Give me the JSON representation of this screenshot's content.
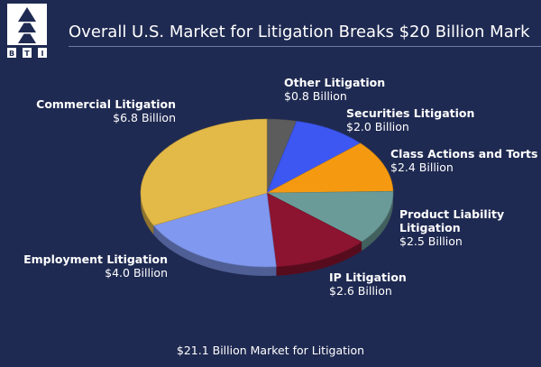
{
  "slide": {
    "logo_letters": [
      "B",
      "T",
      "I"
    ],
    "title": "Overall U.S. Market for Litigation Breaks $20 Billion Mark",
    "footer": "$21.1 Billion Market for Litigation"
  },
  "chart_data": {
    "type": "pie",
    "title": "Overall U.S. Market for Litigation Breaks $20 Billion Mark",
    "unit": "Billion",
    "total_label": "$21.1 Billion Market for Litigation",
    "slices": [
      {
        "name": "Other Litigation",
        "value": 0.8,
        "value_label": "$0.8 Billion",
        "color": "#5c5c5c"
      },
      {
        "name": "Securities Litigation",
        "value": 2.0,
        "value_label": "$2.0 Billion",
        "color": "#3d57f2"
      },
      {
        "name": "Class Actions and Torts",
        "value": 2.4,
        "value_label": "$2.4 Billion",
        "color": "#f59a10"
      },
      {
        "name": "Product Liability Litigation",
        "name_lines": [
          "Product Liability",
          "Litigation"
        ],
        "value": 2.5,
        "value_label": "$2.5 Billion",
        "color": "#6a9b98"
      },
      {
        "name": "IP Litigation",
        "value": 2.6,
        "value_label": "$2.6 Billion",
        "color": "#8c1430"
      },
      {
        "name": "Employment Litigation",
        "value": 4.0,
        "value_label": "$4.0 Billion",
        "color": "#8098ef"
      },
      {
        "name": "Commercial Litigation",
        "value": 6.8,
        "value_label": "$6.8 Billion",
        "color": "#e3b948"
      }
    ]
  }
}
